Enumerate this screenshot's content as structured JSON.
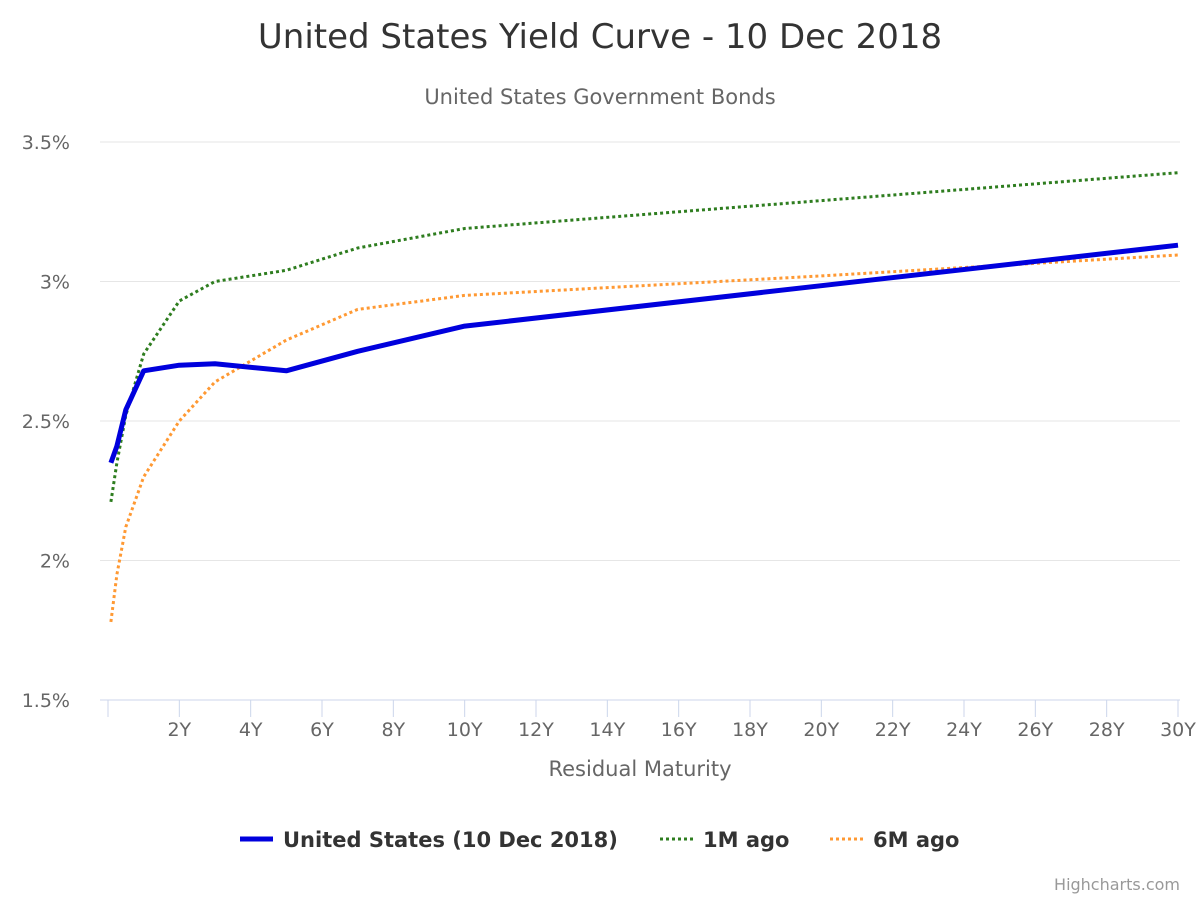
{
  "credits": "Highcharts.com",
  "chart_data": {
    "type": "line",
    "title": "United States Yield Curve - 10 Dec 2018",
    "subtitle": "United States Government Bonds",
    "xlabel": "Residual Maturity",
    "ylabel": "",
    "xlim": [
      0,
      30
    ],
    "ylim": [
      1.5,
      3.5
    ],
    "x_ticks": [
      {
        "value": 2,
        "label": "2Y"
      },
      {
        "value": 4,
        "label": "4Y"
      },
      {
        "value": 6,
        "label": "6Y"
      },
      {
        "value": 8,
        "label": "8Y"
      },
      {
        "value": 10,
        "label": "10Y"
      },
      {
        "value": 12,
        "label": "12Y"
      },
      {
        "value": 14,
        "label": "14Y"
      },
      {
        "value": 16,
        "label": "16Y"
      },
      {
        "value": 18,
        "label": "18Y"
      },
      {
        "value": 20,
        "label": "20Y"
      },
      {
        "value": 22,
        "label": "22Y"
      },
      {
        "value": 24,
        "label": "24Y"
      },
      {
        "value": 26,
        "label": "26Y"
      },
      {
        "value": 28,
        "label": "28Y"
      },
      {
        "value": 30,
        "label": "30Y"
      }
    ],
    "y_ticks": [
      {
        "value": 1.5,
        "label": "1.5%"
      },
      {
        "value": 2.0,
        "label": "2%"
      },
      {
        "value": 2.5,
        "label": "2.5%"
      },
      {
        "value": 3.0,
        "label": "3%"
      },
      {
        "value": 3.5,
        "label": "3.5%"
      }
    ],
    "grid": true,
    "legend_position": "bottom-center",
    "series": [
      {
        "name": "United States (10 Dec 2018)",
        "color": "#0000dd",
        "style": "solid",
        "points": [
          [
            0.08,
            2.35
          ],
          [
            0.25,
            2.41
          ],
          [
            0.5,
            2.54
          ],
          [
            1,
            2.68
          ],
          [
            2,
            2.7
          ],
          [
            3,
            2.705
          ],
          [
            5,
            2.68
          ],
          [
            7,
            2.75
          ],
          [
            10,
            2.84
          ],
          [
            20,
            2.985
          ],
          [
            30,
            3.13
          ]
        ]
      },
      {
        "name": "1M ago",
        "color": "#2e7d1f",
        "style": "dotted",
        "points": [
          [
            0.08,
            2.21
          ],
          [
            0.25,
            2.35
          ],
          [
            0.5,
            2.52
          ],
          [
            1,
            2.74
          ],
          [
            2,
            2.93
          ],
          [
            3,
            3.0
          ],
          [
            5,
            3.04
          ],
          [
            7,
            3.12
          ],
          [
            10,
            3.19
          ],
          [
            20,
            3.29
          ],
          [
            30,
            3.39
          ]
        ]
      },
      {
        "name": "6M ago",
        "color": "#ff9933",
        "style": "dotted",
        "points": [
          [
            0.08,
            1.78
          ],
          [
            0.25,
            1.95
          ],
          [
            0.5,
            2.12
          ],
          [
            1,
            2.3
          ],
          [
            2,
            2.5
          ],
          [
            3,
            2.64
          ],
          [
            5,
            2.79
          ],
          [
            7,
            2.9
          ],
          [
            10,
            2.95
          ],
          [
            20,
            3.02
          ],
          [
            30,
            3.095
          ]
        ]
      }
    ]
  }
}
